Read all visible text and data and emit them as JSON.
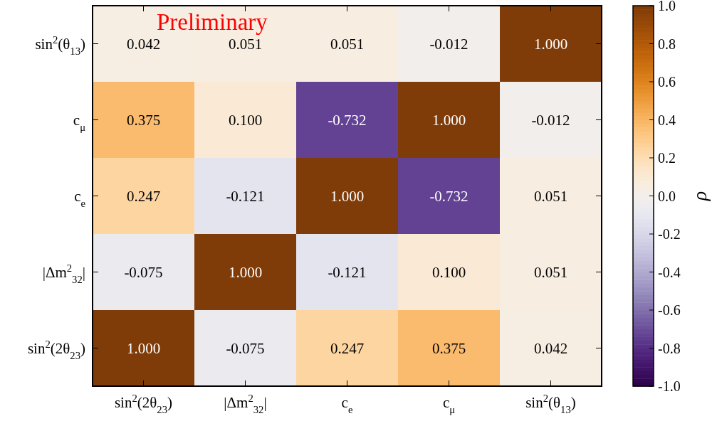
{
  "chart_data": {
    "type": "heatmap",
    "categories": [
      "sin$^{2}$(2θ$_{23}$)",
      "|Δm$^{2}$$_{32}$|",
      "c$_{e}$",
      "c$_{μ}$",
      "sin$^{2}$(θ$_{13}$)"
    ],
    "y_categories": [
      "sin$^{2}$(θ$_{13}$)",
      "c$_{μ}$",
      "c$_{e}$",
      "|Δm$^{2}$$_{32}$|",
      "sin$^{2}$(2θ$_{23}$)"
    ],
    "cells": [
      [
        0.042,
        0.051,
        0.051,
        -0.012,
        1.0
      ],
      [
        0.375,
        0.1,
        -0.732,
        1.0,
        -0.012
      ],
      [
        0.247,
        -0.121,
        1.0,
        -0.732,
        0.051
      ],
      [
        -0.075,
        1.0,
        -0.121,
        0.1,
        0.051
      ],
      [
        1.0,
        -0.075,
        0.247,
        0.375,
        0.042
      ]
    ],
    "cell_labels": [
      [
        "0.042",
        "0.051",
        "0.051",
        "-0.012",
        "1.000"
      ],
      [
        "0.375",
        "0.100",
        "-0.732",
        "1.000",
        "-0.012"
      ],
      [
        "0.247",
        "-0.121",
        "1.000",
        "-0.732",
        "0.051"
      ],
      [
        "-0.075",
        "1.000",
        "-0.121",
        "0.100",
        "0.051"
      ],
      [
        "1.000",
        "-0.075",
        "0.247",
        "0.375",
        "0.042"
      ]
    ],
    "clim": [
      -1,
      1
    ],
    "cticks": [
      {
        "value": -1,
        "label": "-1.0"
      },
      {
        "value": -0.8,
        "label": "-0.8"
      },
      {
        "value": -0.6,
        "label": "-0.6"
      },
      {
        "value": -0.4,
        "label": "-0.4"
      },
      {
        "value": -0.2,
        "label": "-0.2"
      },
      {
        "value": 0,
        "label": "0.0"
      },
      {
        "value": 0.2,
        "label": "0.2"
      },
      {
        "value": 0.4,
        "label": "0.4"
      },
      {
        "value": 0.6,
        "label": "0.6"
      },
      {
        "value": 0.8,
        "label": "0.8"
      },
      {
        "value": 1,
        "label": "1.0"
      }
    ],
    "clabel": "ρ",
    "annotations": [
      "Preliminary"
    ]
  }
}
